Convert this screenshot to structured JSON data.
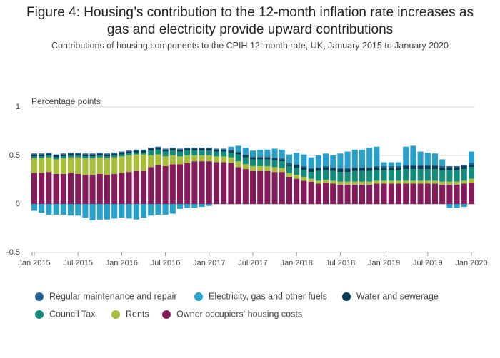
{
  "chart_data": {
    "type": "stacked_bar",
    "title": "Figure 4: Housing’s contribution to the 12-month inflation rate increases as gas and electricity provide upward contributions",
    "subtitle": "Contributions of housing components to the CPIH 12-month rate, UK, January 2015 to January 2020",
    "y_axis_label": "Percentage points",
    "categories": [
      "Jan 2015",
      null,
      null,
      null,
      null,
      null,
      "Jul 2015",
      null,
      null,
      null,
      null,
      null,
      "Jan 2016",
      null,
      null,
      null,
      null,
      null,
      "Jul 2016",
      null,
      null,
      null,
      null,
      null,
      "Jan 2017",
      null,
      null,
      null,
      null,
      null,
      "Jul 2017",
      null,
      null,
      null,
      null,
      null,
      "Jan 2018",
      null,
      null,
      null,
      null,
      null,
      "Jul 2018",
      null,
      null,
      null,
      null,
      null,
      "Jan 2019",
      null,
      null,
      null,
      null,
      null,
      "Jul 2019",
      null,
      null,
      null,
      null,
      null,
      "Jan 2020"
    ],
    "ylim": [
      -0.5,
      1
    ],
    "yticks": [
      -0.5,
      0,
      0.5,
      1
    ],
    "grid": true,
    "series": [
      {
        "name": "Regular maintenance and repair",
        "color": "#206095",
        "values": [
          0.01,
          0.01,
          0.01,
          0.01,
          0.01,
          0.01,
          0.01,
          0.01,
          0.01,
          0.01,
          0.01,
          0.01,
          0.01,
          0.01,
          0.01,
          0.01,
          0.01,
          0.01,
          0.01,
          0.01,
          0.01,
          0.01,
          0.01,
          0.01,
          0.01,
          0.01,
          0.01,
          0.01,
          0.01,
          0.01,
          0.01,
          0.01,
          0.01,
          0.01,
          0.01,
          0.01,
          0.01,
          0.01,
          0.01,
          0.01,
          0.01,
          0.01,
          0.01,
          0.01,
          0.01,
          0.01,
          0.01,
          0.01,
          0.01,
          0.01,
          0.01,
          0.01,
          0.01,
          0.01,
          0.01,
          0.01,
          0.01,
          0.01,
          0.01,
          0.01,
          0.01
        ]
      },
      {
        "name": "Electricity, gas and other fuels",
        "color": "#27a0cc",
        "values": [
          -0.07,
          -0.09,
          -0.11,
          -0.11,
          -0.11,
          -0.12,
          -0.12,
          -0.14,
          -0.17,
          -0.16,
          -0.16,
          -0.15,
          -0.14,
          -0.15,
          -0.16,
          -0.14,
          -0.12,
          -0.11,
          -0.11,
          -0.1,
          -0.05,
          -0.04,
          -0.04,
          -0.03,
          -0.02,
          0,
          0,
          0.03,
          0.06,
          0.07,
          0.06,
          0.07,
          0.07,
          0.09,
          0.09,
          0.09,
          0.12,
          0.12,
          0.11,
          0.12,
          0.13,
          0.12,
          0.15,
          0.17,
          0.18,
          0.18,
          0.2,
          0.2,
          0.04,
          0.04,
          0.04,
          0.19,
          0.2,
          0.14,
          0.13,
          0.12,
          0.07,
          -0.04,
          -0.04,
          -0.03,
          0.12
        ]
      },
      {
        "name": "Water and sewerage",
        "color": "#003c57",
        "values": [
          0.02,
          0.02,
          0.02,
          0.02,
          0.02,
          0.02,
          0.02,
          0.02,
          0.02,
          0.02,
          0.02,
          0.02,
          0.02,
          0.02,
          0.02,
          0.02,
          0.02,
          0.02,
          0.02,
          0.02,
          0.02,
          0.02,
          0.02,
          0.02,
          0.02,
          0.02,
          0.02,
          0.02,
          0.02,
          0.02,
          0.02,
          0.02,
          0.02,
          0.02,
          0.02,
          0.02,
          0.03,
          0.03,
          0.03,
          0.03,
          0.03,
          0.03,
          0.03,
          0.03,
          0.03,
          0.03,
          0.03,
          0.03,
          0.03,
          0.03,
          0.03,
          0.03,
          0.03,
          0.03,
          0.03,
          0.03,
          0.03,
          0.03,
          0.03,
          0.03,
          0.03
        ]
      },
      {
        "name": "Council Tax",
        "color": "#118c7b",
        "values": [
          0.02,
          0.02,
          0.02,
          0.02,
          0.02,
          0.02,
          0.02,
          0.02,
          0.02,
          0.02,
          0.02,
          0.02,
          0.02,
          0.02,
          0.02,
          0.02,
          0.05,
          0.05,
          0.05,
          0.05,
          0.05,
          0.05,
          0.05,
          0.05,
          0.05,
          0.05,
          0.05,
          0.05,
          0.07,
          0.07,
          0.07,
          0.07,
          0.07,
          0.07,
          0.07,
          0.07,
          0.07,
          0.07,
          0.07,
          0.1,
          0.1,
          0.1,
          0.1,
          0.1,
          0.11,
          0.11,
          0.11,
          0.11,
          0.11,
          0.11,
          0.11,
          0.12,
          0.12,
          0.12,
          0.12,
          0.12,
          0.12,
          0.12,
          0.12,
          0.12,
          0.12
        ]
      },
      {
        "name": "Rents",
        "color": "#a8bd3a",
        "values": [
          0.15,
          0.15,
          0.15,
          0.15,
          0.16,
          0.16,
          0.17,
          0.17,
          0.17,
          0.17,
          0.17,
          0.17,
          0.17,
          0.17,
          0.17,
          0.17,
          0.12,
          0.11,
          0.1,
          0.09,
          0.08,
          0.08,
          0.06,
          0.06,
          0.06,
          0.06,
          0.06,
          0.06,
          0.06,
          0.05,
          0.05,
          0.05,
          0.05,
          0.05,
          0.04,
          0.04,
          0.04,
          0.04,
          0.03,
          0.03,
          0.03,
          0.03,
          0.03,
          0.03,
          0.03,
          0.03,
          0.03,
          0.03,
          0.03,
          0.03,
          0.03,
          0.03,
          0.03,
          0.03,
          0.03,
          0.03,
          0.03,
          0.03,
          0.03,
          0.03,
          0.04
        ]
      },
      {
        "name": "Owner occupiers' housing costs",
        "color": "#871a5b",
        "values": [
          0.32,
          0.32,
          0.33,
          0.31,
          0.31,
          0.32,
          0.31,
          0.3,
          0.3,
          0.31,
          0.3,
          0.31,
          0.32,
          0.33,
          0.34,
          0.34,
          0.38,
          0.4,
          0.39,
          0.41,
          0.41,
          0.42,
          0.44,
          0.44,
          0.44,
          0.43,
          0.43,
          0.42,
          0.38,
          0.36,
          0.34,
          0.34,
          0.34,
          0.33,
          0.33,
          0.28,
          0.26,
          0.24,
          0.23,
          0.21,
          0.22,
          0.21,
          0.2,
          0.2,
          0.2,
          0.2,
          0.2,
          0.21,
          0.21,
          0.21,
          0.21,
          0.21,
          0.21,
          0.21,
          0.21,
          0.21,
          0.2,
          0.2,
          0.2,
          0.21,
          0.22
        ]
      }
    ]
  }
}
